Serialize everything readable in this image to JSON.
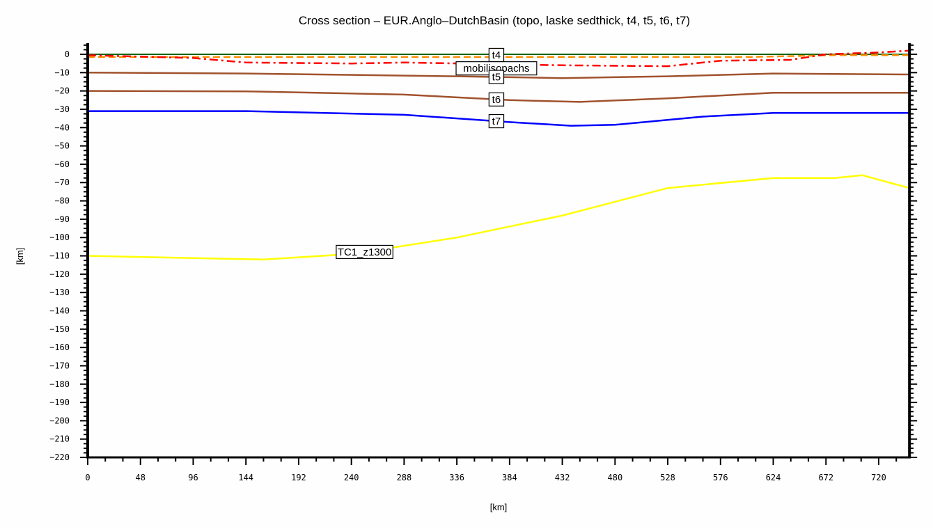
{
  "title": "Cross section – EUR.Anglo–DutchBasin (topo, laske sedthick, t4, t5, t6, t7)",
  "chart_data": {
    "type": "line",
    "title": "Cross section – EUR.Anglo–DutchBasin (topo, laske sedthick, t4, t5, t6, t7)",
    "xlabel": "[km]",
    "ylabel": "[km]",
    "xlim": [
      0,
      748
    ],
    "ylim": [
      -220,
      5
    ],
    "x_ticks": [
      0,
      48,
      96,
      144,
      192,
      240,
      288,
      336,
      384,
      432,
      480,
      528,
      576,
      624,
      672,
      720
    ],
    "y_ticks": [
      0,
      -10,
      -20,
      -30,
      -40,
      -50,
      -60,
      -70,
      -80,
      -90,
      -100,
      -110,
      -120,
      -130,
      -140,
      -150,
      -160,
      -170,
      -180,
      -190,
      -200,
      -210,
      -220
    ],
    "grid": false,
    "legend": "inline labels",
    "series": [
      {
        "name": "topo",
        "color": "#006400",
        "style": "solid",
        "x": [
          0,
          748
        ],
        "y": [
          0,
          0
        ]
      },
      {
        "name": "t4",
        "color": "#ff8c00",
        "style": "dashed",
        "label": "t4",
        "label_x": 372,
        "x": [
          0,
          200,
          400,
          600,
          680,
          748
        ],
        "y": [
          -1.5,
          -1.5,
          -1.5,
          -1.5,
          -0.5,
          -0.5
        ]
      },
      {
        "name": "mobilisopachs",
        "color": "#ff0000",
        "style": "dashdot",
        "label": "mobilisopachs",
        "label_x": 372,
        "x": [
          0,
          96,
          144,
          240,
          288,
          432,
          528,
          576,
          640,
          672,
          720,
          748
        ],
        "y": [
          -0.5,
          -2,
          -4.5,
          -5,
          -4.5,
          -6,
          -6.5,
          -3.5,
          -3,
          0,
          1,
          2
        ]
      },
      {
        "name": "t5",
        "color": "#a0522d",
        "style": "solid",
        "label": "t5",
        "label_x": 372,
        "x": [
          0,
          144,
          336,
          432,
          528,
          624,
          748
        ],
        "y": [
          -10,
          -10.5,
          -12,
          -13,
          -12,
          -10.5,
          -11
        ]
      },
      {
        "name": "t6",
        "color": "#a0522d",
        "style": "solid",
        "label": "t6",
        "label_x": 372,
        "x": [
          0,
          144,
          288,
          384,
          448,
          528,
          624,
          748
        ],
        "y": [
          -20,
          -20.2,
          -22,
          -25,
          -26,
          -24,
          -21,
          -21
        ]
      },
      {
        "name": "t7",
        "color": "#0000ff",
        "style": "solid",
        "label": "t7",
        "label_x": 372,
        "x": [
          0,
          144,
          288,
          384,
          440,
          480,
          560,
          624,
          748
        ],
        "y": [
          -31,
          -31,
          -33,
          -37,
          -39,
          -38.5,
          -34,
          -32,
          -32
        ]
      },
      {
        "name": "TC1_z1300",
        "color": "#ffff00",
        "style": "solid",
        "label": "TC1_z1300",
        "label_x": 252,
        "x": [
          0,
          160,
          240,
          336,
          432,
          528,
          624,
          680,
          705,
          748
        ],
        "y": [
          -110,
          -112,
          -109,
          -100,
          -88,
          -73,
          -67.5,
          -67.5,
          -66,
          -73
        ]
      }
    ]
  }
}
